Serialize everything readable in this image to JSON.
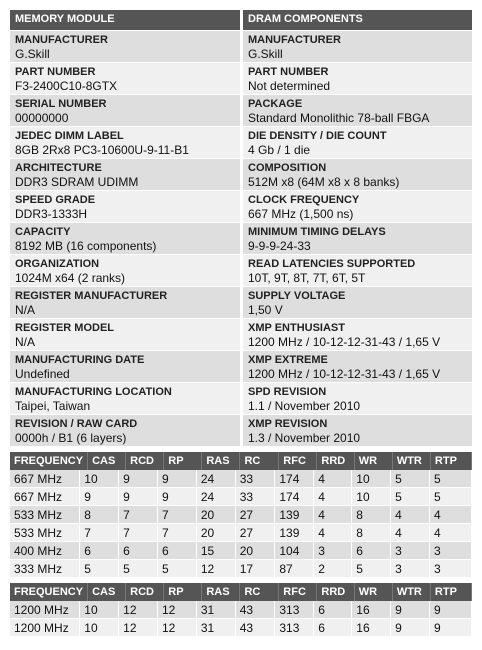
{
  "left": {
    "header": "MEMORY MODULE",
    "fields": [
      {
        "label": "MANUFACTURER",
        "value": "G.Skill"
      },
      {
        "label": "PART NUMBER",
        "value": "F3-2400C10-8GTX"
      },
      {
        "label": "SERIAL NUMBER",
        "value": "00000000"
      },
      {
        "label": "JEDEC DIMM LABEL",
        "value": "8GB 2Rx8 PC3-10600U-9-11-B1"
      },
      {
        "label": "ARCHITECTURE",
        "value": "DDR3 SDRAM UDIMM"
      },
      {
        "label": "SPEED GRADE",
        "value": "DDR3-1333H"
      },
      {
        "label": "CAPACITY",
        "value": "8192 MB (16 components)"
      },
      {
        "label": "ORGANIZATION",
        "value": "1024M x64 (2 ranks)"
      },
      {
        "label": "REGISTER MANUFACTURER",
        "value": "N/A"
      },
      {
        "label": "REGISTER MODEL",
        "value": "N/A"
      },
      {
        "label": "MANUFACTURING DATE",
        "value": "Undefined"
      },
      {
        "label": "MANUFACTURING LOCATION",
        "value": "Taipei, Taiwan"
      },
      {
        "label": "REVISION / RAW CARD",
        "value": "0000h / B1 (6 layers)"
      }
    ]
  },
  "right": {
    "header": "DRAM COMPONENTS",
    "fields": [
      {
        "label": "MANUFACTURER",
        "value": "G.Skill"
      },
      {
        "label": "PART NUMBER",
        "value": "Not determined"
      },
      {
        "label": "PACKAGE",
        "value": "Standard Monolithic 78-ball FBGA"
      },
      {
        "label": "DIE DENSITY / DIE COUNT",
        "value": "4 Gb / 1 die"
      },
      {
        "label": "COMPOSITION",
        "value": "512M x8 (64M x8 x 8 banks)"
      },
      {
        "label": "CLOCK FREQUENCY",
        "value": "667 MHz (1,500 ns)"
      },
      {
        "label": "MINIMUM TIMING DELAYS",
        "value": "9-9-9-24-33"
      },
      {
        "label": "READ LATENCIES SUPPORTED",
        "value": "10T, 9T, 8T, 7T, 6T, 5T"
      },
      {
        "label": "SUPPLY VOLTAGE",
        "value": "1,50 V"
      },
      {
        "label": "XMP ENTHUSIAST",
        "value": "1200 MHz / 10-12-12-31-43 / 1,65 V"
      },
      {
        "label": "XMP EXTREME",
        "value": "1200 MHz / 10-12-12-31-43 / 1,65 V"
      },
      {
        "label": "SPD REVISION",
        "value": "1.1 / November 2010"
      },
      {
        "label": "XMP REVISION",
        "value": "1.3 / November 2010"
      }
    ]
  },
  "timings": [
    {
      "columns": [
        "FREQUENCY",
        "CAS",
        "RCD",
        "RP",
        "RAS",
        "RC",
        "RFC",
        "RRD",
        "WR",
        "WTR",
        "RTP"
      ],
      "rows": [
        [
          "667 MHz",
          "10",
          "9",
          "9",
          "24",
          "33",
          "174",
          "4",
          "10",
          "5",
          "5"
        ],
        [
          "667 MHz",
          "9",
          "9",
          "9",
          "24",
          "33",
          "174",
          "4",
          "10",
          "5",
          "5"
        ],
        [
          "533 MHz",
          "8",
          "7",
          "7",
          "20",
          "27",
          "139",
          "4",
          "8",
          "4",
          "4"
        ],
        [
          "533 MHz",
          "7",
          "7",
          "7",
          "20",
          "27",
          "139",
          "4",
          "8",
          "4",
          "4"
        ],
        [
          "400 MHz",
          "6",
          "6",
          "6",
          "15",
          "20",
          "104",
          "3",
          "6",
          "3",
          "3"
        ],
        [
          "333 MHz",
          "5",
          "5",
          "5",
          "12",
          "17",
          "87",
          "2",
          "5",
          "3",
          "3"
        ]
      ]
    },
    {
      "columns": [
        "FREQUENCY",
        "CAS",
        "RCD",
        "RP",
        "RAS",
        "RC",
        "RFC",
        "RRD",
        "WR",
        "WTR",
        "RTP"
      ],
      "rows": [
        [
          "1200 MHz",
          "10",
          "12",
          "12",
          "31",
          "43",
          "313",
          "6",
          "16",
          "9",
          "9"
        ],
        [
          "1200 MHz",
          "10",
          "12",
          "12",
          "31",
          "43",
          "313",
          "6",
          "16",
          "9",
          "9"
        ]
      ]
    }
  ]
}
